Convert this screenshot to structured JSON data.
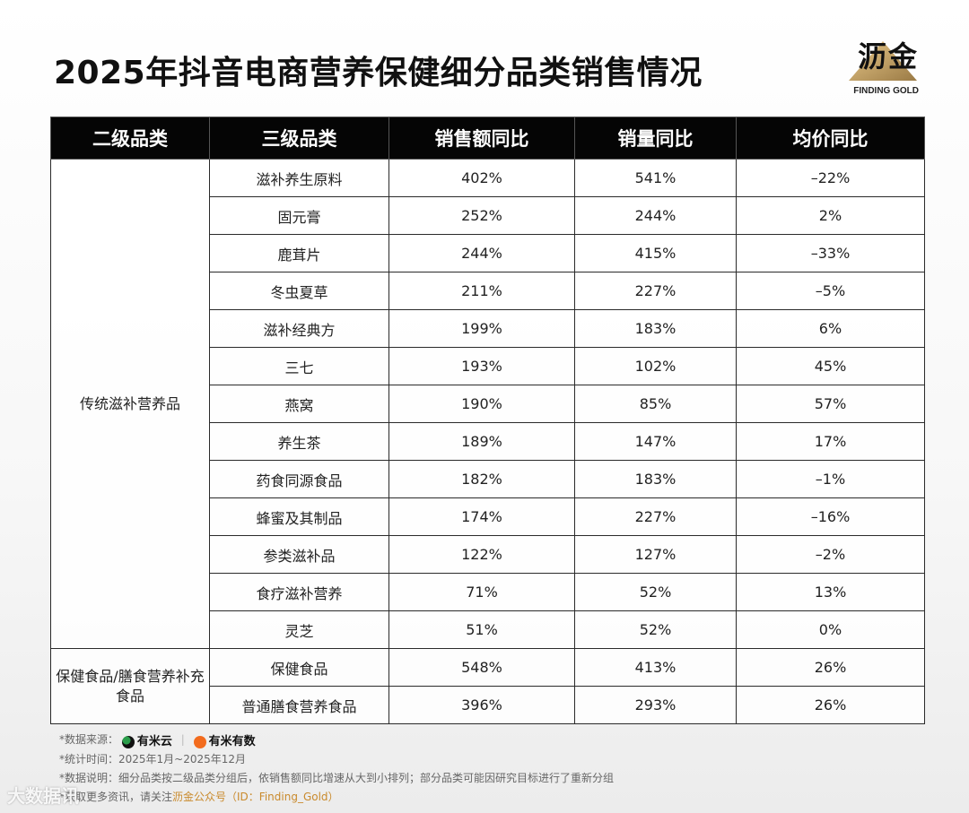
{
  "title": "2025年抖音电商营养保健细分品类销售情况",
  "logo": {
    "brand": "沥金",
    "tagline": "FINDING GOLD"
  },
  "table": {
    "headers": [
      "二级品类",
      "三级品类",
      "销售额同比",
      "销量同比",
      "均价同比"
    ],
    "groups": [
      {
        "name": "传统滋补营养品",
        "rows": [
          [
            "滋补养生原料",
            "402%",
            "541%",
            "–22%"
          ],
          [
            "固元膏",
            "252%",
            "244%",
            "2%"
          ],
          [
            "鹿茸片",
            "244%",
            "415%",
            "–33%"
          ],
          [
            "冬虫夏草",
            "211%",
            "227%",
            "–5%"
          ],
          [
            "滋补经典方",
            "199%",
            "183%",
            "6%"
          ],
          [
            "三七",
            "193%",
            "102%",
            "45%"
          ],
          [
            "燕窝",
            "190%",
            "85%",
            "57%"
          ],
          [
            "养生茶",
            "189%",
            "147%",
            "17%"
          ],
          [
            "药食同源食品",
            "182%",
            "183%",
            "–1%"
          ],
          [
            "蜂蜜及其制品",
            "174%",
            "227%",
            "–16%"
          ],
          [
            "参类滋补品",
            "122%",
            "127%",
            "–2%"
          ],
          [
            "食疗滋补营养",
            "71%",
            "52%",
            "13%"
          ],
          [
            "灵芝",
            "51%",
            "52%",
            "0%"
          ]
        ]
      },
      {
        "name": "保健食品/膳食营养补充食品",
        "rows": [
          [
            "保健食品",
            "548%",
            "413%",
            "26%"
          ],
          [
            "普通膳食营养食品",
            "396%",
            "293%",
            "26%"
          ]
        ]
      }
    ]
  },
  "footer": {
    "source_label": "*数据来源：",
    "source_1": "有米云",
    "source_sep": "|",
    "source_2": "有米有数",
    "period": "*统计时间：2025年1月~2025年12月",
    "note": "*数据说明：细分品类按二级品类分组后，依销售额同比增速从大到小排列；部分品类可能因研究目标进行了重新分组",
    "follow_prefix": "*获取更多资讯，请关注",
    "follow_account": "沥金公众号（ID：Finding_Gold）"
  },
  "watermark": "大数据讯",
  "colors": {
    "header_bg": "#050505",
    "accent": "#c98a2c",
    "source_1": "#2a9d4a",
    "source_2": "#f26b1d"
  }
}
